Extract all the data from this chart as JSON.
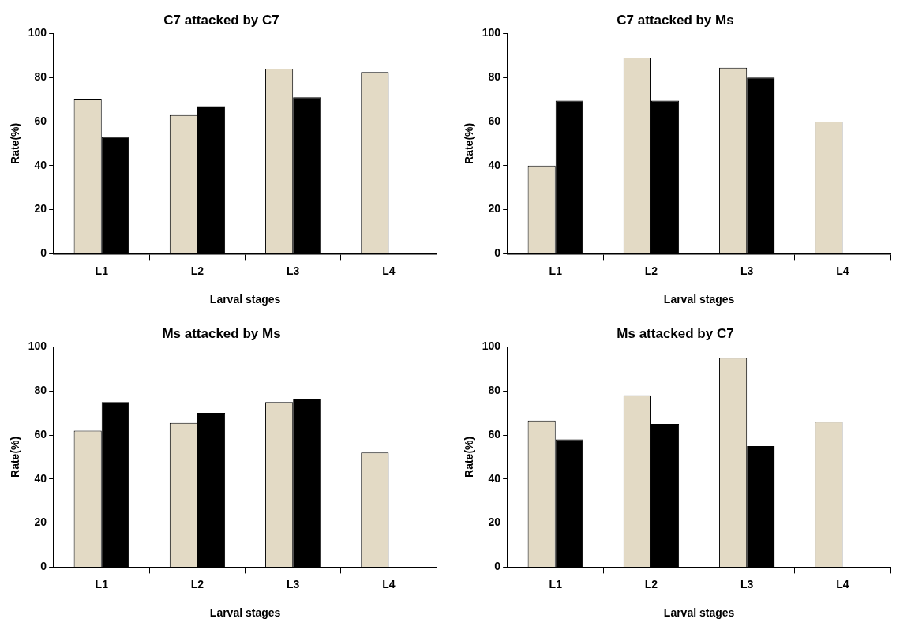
{
  "chart_data": [
    {
      "type": "bar",
      "title": "C7 attacked by C7",
      "xlabel": "Larval stages",
      "ylabel": "Rate(%)",
      "categories": [
        "L1",
        "L2",
        "L3",
        "L4"
      ],
      "ylim": [
        0,
        100
      ],
      "yticks": [
        0,
        20,
        40,
        60,
        80,
        100
      ],
      "series": [
        {
          "color": "#e3dac5",
          "values": [
            70,
            63,
            84,
            82.5
          ]
        },
        {
          "color": "#000000",
          "values": [
            53,
            67,
            71,
            null
          ]
        }
      ]
    },
    {
      "type": "bar",
      "title": "C7 attacked by Ms",
      "xlabel": "Larval stages",
      "ylabel": "Rate(%)",
      "categories": [
        "L1",
        "L2",
        "L3",
        "L4"
      ],
      "ylim": [
        0,
        100
      ],
      "yticks": [
        0,
        20,
        40,
        60,
        80,
        100
      ],
      "series": [
        {
          "color": "#e3dac5",
          "values": [
            40,
            89,
            84.5,
            60
          ]
        },
        {
          "color": "#000000",
          "values": [
            69.5,
            69.5,
            80,
            null
          ]
        }
      ]
    },
    {
      "type": "bar",
      "title": "Ms attacked by Ms",
      "xlabel": "Larval stages",
      "ylabel": "Rate(%)",
      "categories": [
        "L1",
        "L2",
        "L3",
        "L4"
      ],
      "ylim": [
        0,
        100
      ],
      "yticks": [
        0,
        20,
        40,
        60,
        80,
        100
      ],
      "series": [
        {
          "color": "#e3dac5",
          "values": [
            62,
            65.5,
            75,
            52
          ]
        },
        {
          "color": "#000000",
          "values": [
            75,
            70,
            76.5,
            null
          ]
        }
      ]
    },
    {
      "type": "bar",
      "title": "Ms attacked by C7",
      "xlabel": "Larval stages",
      "ylabel": "Rate(%)",
      "categories": [
        "L1",
        "L2",
        "L3",
        "L4"
      ],
      "ylim": [
        0,
        100
      ],
      "yticks": [
        0,
        20,
        40,
        60,
        80,
        100
      ],
      "series": [
        {
          "color": "#e3dac5",
          "values": [
            66.5,
            78,
            95,
            66
          ]
        },
        {
          "color": "#000000",
          "values": [
            58,
            65,
            55,
            null
          ]
        }
      ]
    }
  ]
}
